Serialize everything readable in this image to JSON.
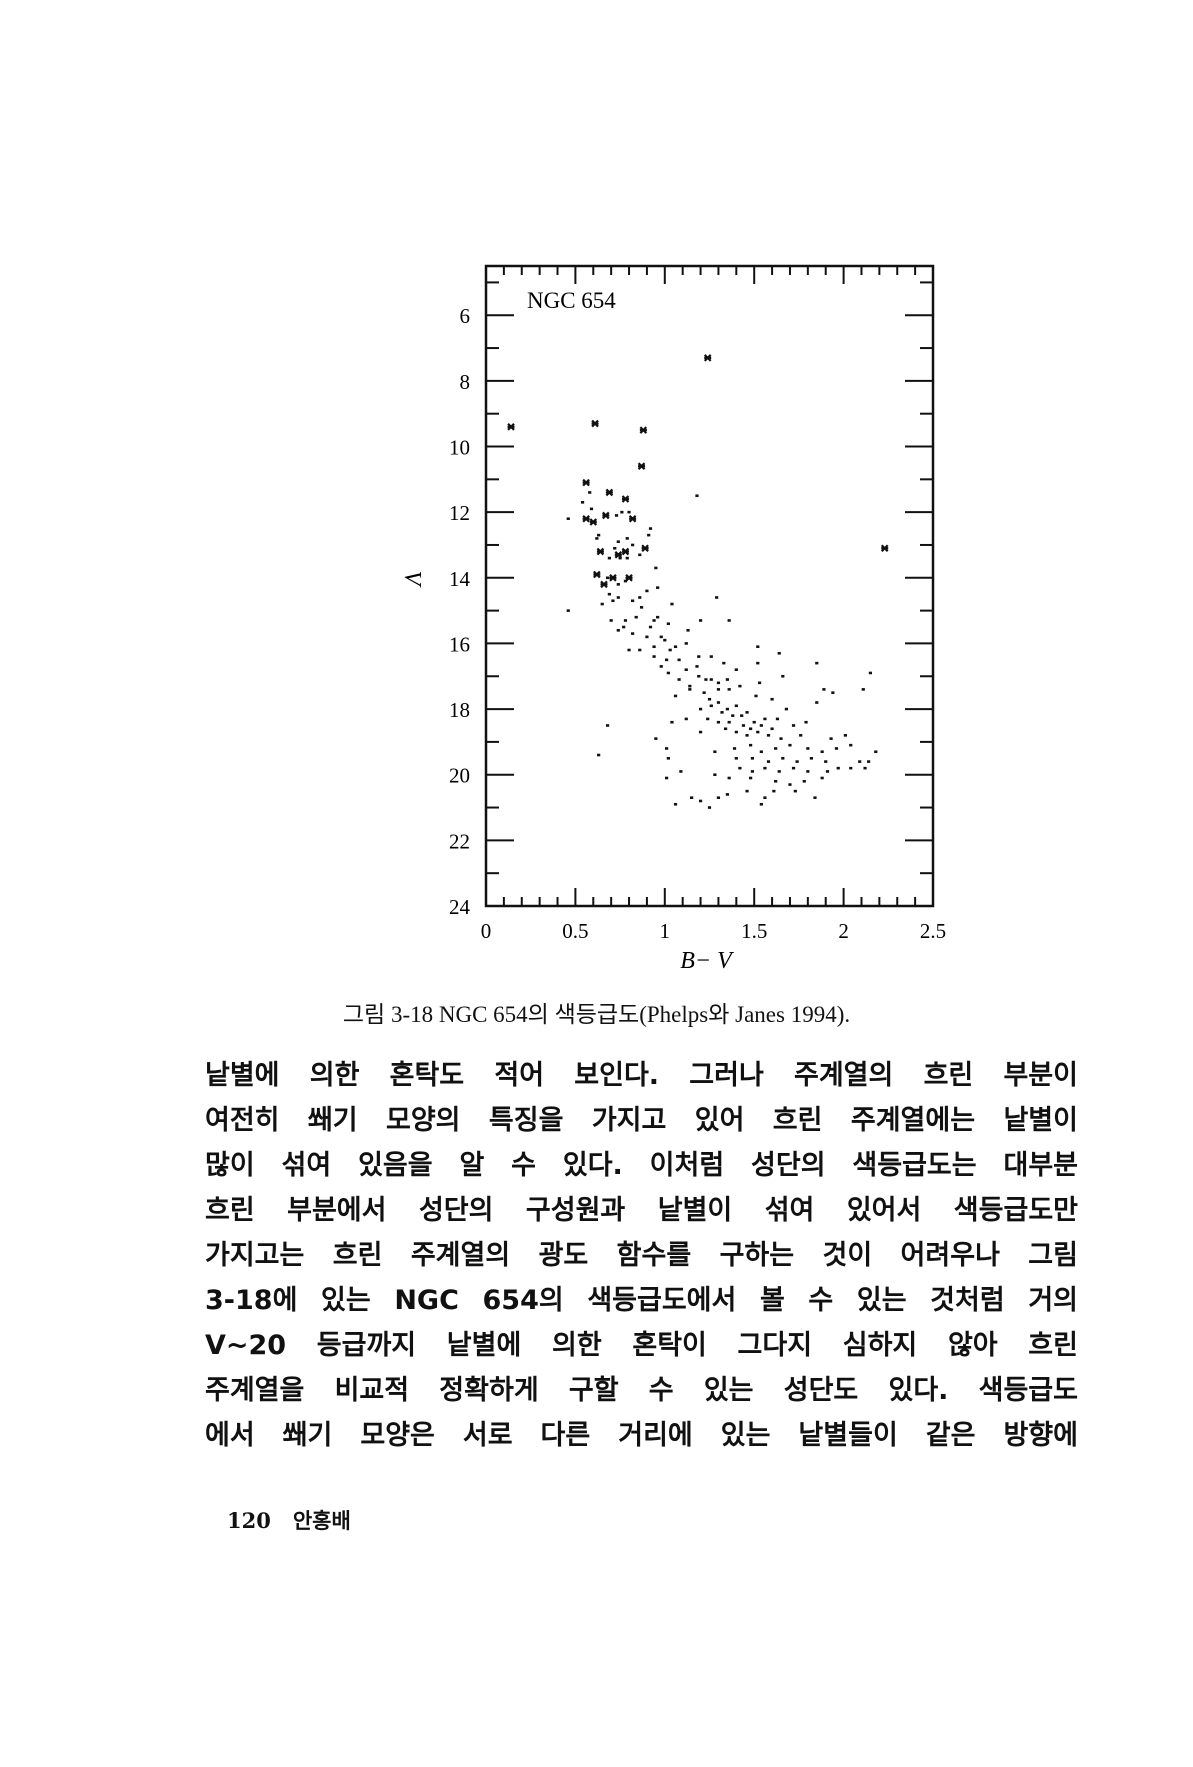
{
  "chart_data": {
    "type": "scatter",
    "title": "NGC 654",
    "xlabel": "B− V",
    "ylabel": "V",
    "xlim": [
      0,
      2.5
    ],
    "ylim": [
      24,
      4.5
    ],
    "y_inverted": true,
    "grid": false,
    "xticks": [
      "0",
      "0.5",
      "1",
      "1.5",
      "2",
      "2.5"
    ],
    "yticks": [
      "6",
      "8",
      "10",
      "12",
      "14",
      "16",
      "18",
      "20",
      "22",
      "24"
    ],
    "bright_stars_marker": "cross",
    "bright_stars": [
      [
        0.14,
        9.4
      ],
      [
        0.61,
        9.3
      ],
      [
        0.88,
        9.5
      ],
      [
        0.87,
        10.6
      ],
      [
        1.24,
        7.3
      ],
      [
        0.56,
        11.1
      ],
      [
        0.69,
        11.4
      ],
      [
        0.78,
        11.6
      ],
      [
        0.56,
        12.2
      ],
      [
        0.6,
        12.3
      ],
      [
        0.67,
        12.1
      ],
      [
        0.82,
        12.2
      ],
      [
        0.89,
        13.1
      ],
      [
        0.64,
        13.2
      ],
      [
        2.23,
        13.1
      ],
      [
        0.62,
        13.9
      ],
      [
        0.71,
        14.0
      ],
      [
        0.8,
        14.0
      ],
      [
        0.66,
        14.2
      ],
      [
        0.74,
        13.3
      ],
      [
        0.78,
        13.2
      ]
    ],
    "stars": [
      [
        0.46,
        12.2
      ],
      [
        0.54,
        11.7
      ],
      [
        0.76,
        12.0
      ],
      [
        0.92,
        12.5
      ],
      [
        0.91,
        12.7
      ],
      [
        0.62,
        12.8
      ],
      [
        0.79,
        12.8
      ],
      [
        1.18,
        11.5
      ],
      [
        0.95,
        13.7
      ],
      [
        0.96,
        14.3
      ],
      [
        0.9,
        14.4
      ],
      [
        0.46,
        15.0
      ],
      [
        0.65,
        14.8
      ],
      [
        0.71,
        14.7
      ],
      [
        0.86,
        14.6
      ],
      [
        1.04,
        14.8
      ],
      [
        1.29,
        14.6
      ],
      [
        0.7,
        15.3
      ],
      [
        0.78,
        15.3
      ],
      [
        0.84,
        15.2
      ],
      [
        0.96,
        15.2
      ],
      [
        1.2,
        15.3
      ],
      [
        1.36,
        15.3
      ],
      [
        0.74,
        15.6
      ],
      [
        0.82,
        15.7
      ],
      [
        0.9,
        15.8
      ],
      [
        0.98,
        15.8
      ],
      [
        1.02,
        15.4
      ],
      [
        1.13,
        15.6
      ],
      [
        1.12,
        16.0
      ],
      [
        0.8,
        16.2
      ],
      [
        0.86,
        16.2
      ],
      [
        0.94,
        16.4
      ],
      [
        1.03,
        16.2
      ],
      [
        1.08,
        16.5
      ],
      [
        1.19,
        16.4
      ],
      [
        1.26,
        16.4
      ],
      [
        1.52,
        16.1
      ],
      [
        1.52,
        16.6
      ],
      [
        1.64,
        16.3
      ],
      [
        1.85,
        16.6
      ],
      [
        2.15,
        16.9
      ],
      [
        0.98,
        16.7
      ],
      [
        1.02,
        16.9
      ],
      [
        1.08,
        17.1
      ],
      [
        1.14,
        17.3
      ],
      [
        1.19,
        17.0
      ],
      [
        1.26,
        17.1
      ],
      [
        1.33,
        16.6
      ],
      [
        1.4,
        16.8
      ],
      [
        1.06,
        17.6
      ],
      [
        1.14,
        17.4
      ],
      [
        1.22,
        17.5
      ],
      [
        1.3,
        17.4
      ],
      [
        1.36,
        17.4
      ],
      [
        1.42,
        17.3
      ],
      [
        1.53,
        17.2
      ],
      [
        1.66,
        17.0
      ],
      [
        1.89,
        17.4
      ],
      [
        1.94,
        17.5
      ],
      [
        2.11,
        17.4
      ],
      [
        1.2,
        18.0
      ],
      [
        1.26,
        17.9
      ],
      [
        1.3,
        17.8
      ],
      [
        1.35,
        18.0
      ],
      [
        1.4,
        17.9
      ],
      [
        1.46,
        18.1
      ],
      [
        1.51,
        17.6
      ],
      [
        1.6,
        17.7
      ],
      [
        1.68,
        18.0
      ],
      [
        1.85,
        17.8
      ],
      [
        1.12,
        18.3
      ],
      [
        1.04,
        18.4
      ],
      [
        1.24,
        18.3
      ],
      [
        1.3,
        18.4
      ],
      [
        1.36,
        18.4
      ],
      [
        1.44,
        18.5
      ],
      [
        1.5,
        18.4
      ],
      [
        1.56,
        18.3
      ],
      [
        1.63,
        18.3
      ],
      [
        1.72,
        18.5
      ],
      [
        1.79,
        18.4
      ],
      [
        0.68,
        18.5
      ],
      [
        1.2,
        18.7
      ],
      [
        1.34,
        18.6
      ],
      [
        1.4,
        18.7
      ],
      [
        1.46,
        18.8
      ],
      [
        1.52,
        18.7
      ],
      [
        1.58,
        18.8
      ],
      [
        1.65,
        18.9
      ],
      [
        1.76,
        18.8
      ],
      [
        1.93,
        18.9
      ],
      [
        2.01,
        18.8
      ],
      [
        0.95,
        18.9
      ],
      [
        1.28,
        19.3
      ],
      [
        1.39,
        19.2
      ],
      [
        1.48,
        19.1
      ],
      [
        1.54,
        19.3
      ],
      [
        1.62,
        19.2
      ],
      [
        1.7,
        19.1
      ],
      [
        1.8,
        19.2
      ],
      [
        1.88,
        19.3
      ],
      [
        1.96,
        19.2
      ],
      [
        2.04,
        19.1
      ],
      [
        2.18,
        19.3
      ],
      [
        1.01,
        19.2
      ],
      [
        0.63,
        19.4
      ],
      [
        1.02,
        19.5
      ],
      [
        1.4,
        19.5
      ],
      [
        1.49,
        19.5
      ],
      [
        1.58,
        19.6
      ],
      [
        1.66,
        19.5
      ],
      [
        1.74,
        19.6
      ],
      [
        1.82,
        19.5
      ],
      [
        1.9,
        19.6
      ],
      [
        2.09,
        19.6
      ],
      [
        2.14,
        19.6
      ],
      [
        1.09,
        19.9
      ],
      [
        1.28,
        20.0
      ],
      [
        1.42,
        19.8
      ],
      [
        1.49,
        19.9
      ],
      [
        1.56,
        19.8
      ],
      [
        1.64,
        19.9
      ],
      [
        1.72,
        19.8
      ],
      [
        1.8,
        19.9
      ],
      [
        1.91,
        19.9
      ],
      [
        1.97,
        19.8
      ],
      [
        2.04,
        19.8
      ],
      [
        2.12,
        19.8
      ],
      [
        1.01,
        20.1
      ],
      [
        1.36,
        20.1
      ],
      [
        1.48,
        20.1
      ],
      [
        1.62,
        20.2
      ],
      [
        1.7,
        20.3
      ],
      [
        1.78,
        20.2
      ],
      [
        1.88,
        20.1
      ],
      [
        1.46,
        20.5
      ],
      [
        1.61,
        20.5
      ],
      [
        1.73,
        20.5
      ],
      [
        1.15,
        20.7
      ],
      [
        1.2,
        20.8
      ],
      [
        1.3,
        20.7
      ],
      [
        1.35,
        20.6
      ],
      [
        1.56,
        20.7
      ],
      [
        1.84,
        20.7
      ],
      [
        1.06,
        20.9
      ],
      [
        1.25,
        21.0
      ],
      [
        1.54,
        20.9
      ],
      [
        0.58,
        11.4
      ],
      [
        0.59,
        11.9
      ],
      [
        0.73,
        12.1
      ],
      [
        0.8,
        12.0
      ],
      [
        0.63,
        12.7
      ],
      [
        0.74,
        12.9
      ],
      [
        0.72,
        13.1
      ],
      [
        0.82,
        13.0
      ],
      [
        0.86,
        13.3
      ],
      [
        0.69,
        13.4
      ],
      [
        0.75,
        13.4
      ],
      [
        0.79,
        13.4
      ],
      [
        0.68,
        14.0
      ],
      [
        0.74,
        14.2
      ],
      [
        0.78,
        14.1
      ],
      [
        0.69,
        14.5
      ],
      [
        0.74,
        14.6
      ],
      [
        0.82,
        14.7
      ],
      [
        0.87,
        14.9
      ],
      [
        0.94,
        15.3
      ],
      [
        0.77,
        15.5
      ],
      [
        0.92,
        15.5
      ],
      [
        1.0,
        15.9
      ],
      [
        1.06,
        16.1
      ],
      [
        0.94,
        16.1
      ],
      [
        1.01,
        16.5
      ],
      [
        1.12,
        16.8
      ],
      [
        1.18,
        16.7
      ],
      [
        1.23,
        17.1
      ],
      [
        1.3,
        17.2
      ],
      [
        1.35,
        17.1
      ],
      [
        1.25,
        17.7
      ],
      [
        1.32,
        18.1
      ],
      [
        1.38,
        18.2
      ],
      [
        1.43,
        18.2
      ],
      [
        1.48,
        18.6
      ],
      [
        1.54,
        18.5
      ],
      [
        1.6,
        18.6
      ]
    ]
  },
  "caption": "그림 3-18  NGC 654의 색등급도(Phelps와 Janes 1994).",
  "body_lines": [
    "낱별에 의한 혼탁도 적어 보인다. 그러나 주계열의 흐린 부분이",
    "여전히 쐐기 모양의 특징을 가지고 있어 흐린 주계열에는 낱별이",
    "많이 섞여 있음을 알 수 있다. 이처럼 성단의 색등급도는 대부분",
    "흐린 부분에서 성단의 구성원과 낱별이 섞여 있어서 색등급도만",
    "가지고는 흐린 주계열의 광도 함수를 구하는 것이 어려우나 그림",
    "3-18에 있는 NGC 654의 색등급도에서 볼 수 있는 것처럼 거의",
    "V~20 등급까지 낱별에 의한 혼탁이 그다지 심하지 않아 흐린",
    "주계열을 비교적 정확하게 구할 수 있는 성단도 있다. 색등급도",
    "에서 쐐기 모양은 서로 다른 거리에 있는 낱별들이 같은 방향에"
  ],
  "footer": {
    "page_number": "120",
    "author": "안홍배"
  }
}
